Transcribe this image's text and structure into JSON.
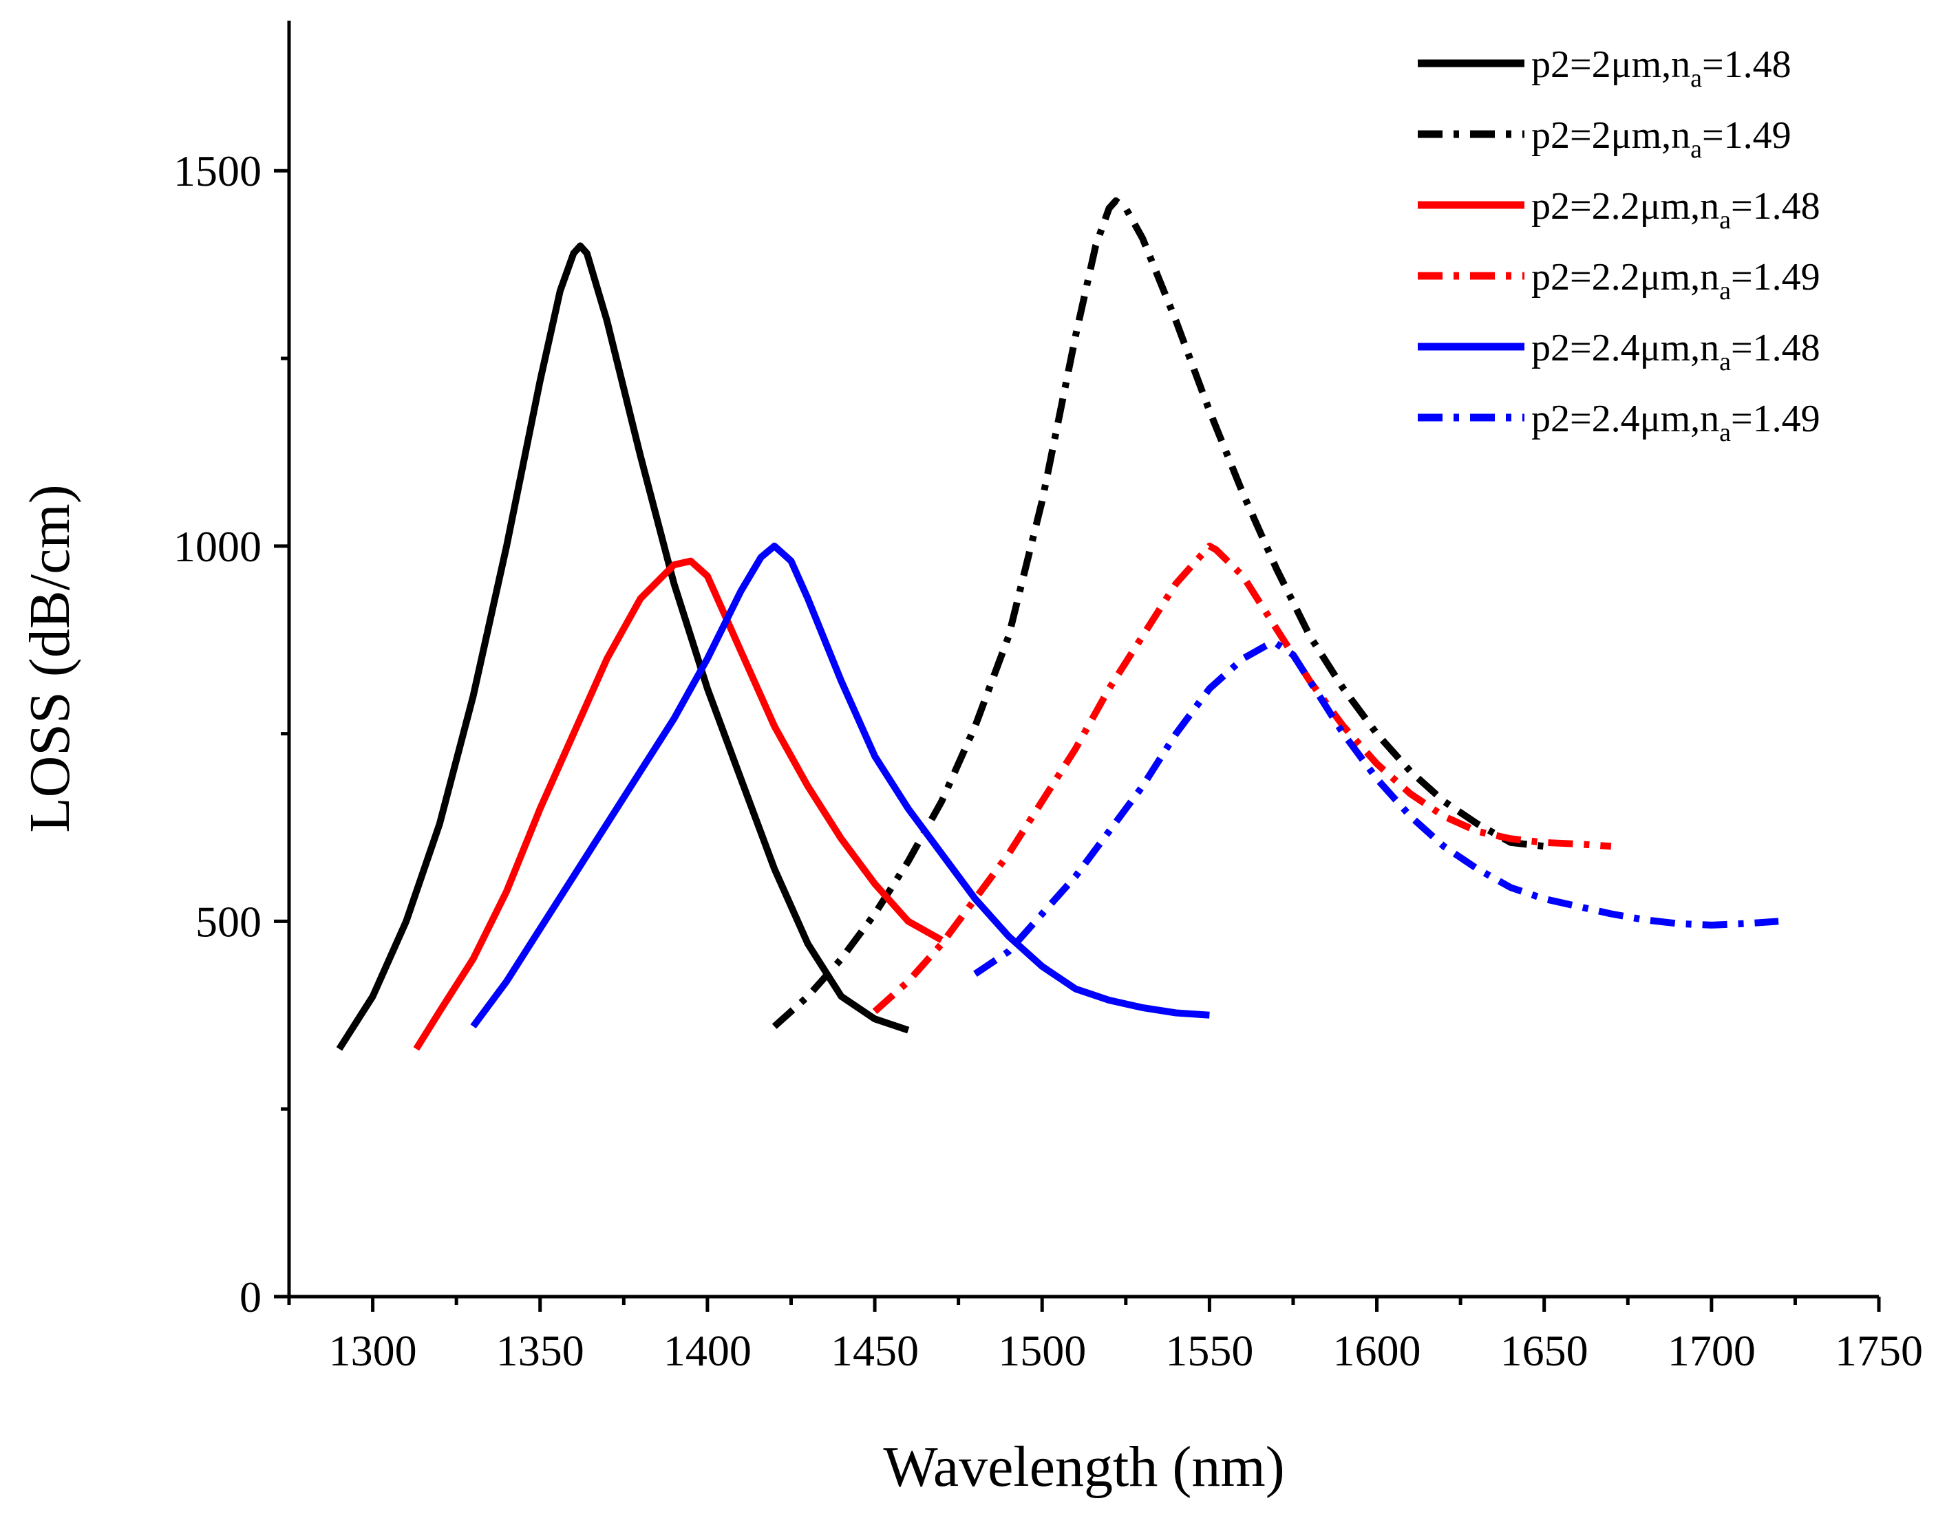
{
  "chart_data": {
    "type": "line",
    "xlabel": "Wavelength (nm)",
    "ylabel": "LOSS (dB/cm)",
    "xlim": [
      1275,
      1750
    ],
    "ylim": [
      0,
      1700
    ],
    "x_ticks": [
      1300,
      1350,
      1400,
      1450,
      1500,
      1550,
      1600,
      1650,
      1700,
      1750
    ],
    "y_ticks": [
      0,
      500,
      1000,
      1500
    ],
    "legend_position": "top-right",
    "grid": false,
    "series": [
      {
        "name": "p2=2μm,na=1.48",
        "legend_base": "p2=2μm,n",
        "legend_sub": "a",
        "legend_tail": "=1.48",
        "color": "#000000",
        "dash": "solid",
        "x": [
          1290,
          1300,
          1310,
          1320,
          1330,
          1340,
          1350,
          1356,
          1360,
          1362,
          1364,
          1370,
          1380,
          1390,
          1400,
          1410,
          1420,
          1430,
          1440,
          1450,
          1460
        ],
        "y": [
          330,
          400,
          500,
          630,
          800,
          1000,
          1220,
          1340,
          1390,
          1400,
          1390,
          1300,
          1120,
          950,
          810,
          690,
          570,
          470,
          400,
          370,
          355
        ]
      },
      {
        "name": "p2=2μm,na=1.49",
        "legend_base": "p2=2μm,n",
        "legend_sub": "a",
        "legend_tail": "=1.49",
        "color": "#000000",
        "dash": "dashdot",
        "x": [
          1420,
          1430,
          1440,
          1450,
          1460,
          1470,
          1480,
          1490,
          1500,
          1510,
          1516,
          1520,
          1522,
          1525,
          1530,
          1540,
          1550,
          1560,
          1570,
          1580,
          1590,
          1600,
          1610,
          1620,
          1630,
          1640,
          1650
        ],
        "y": [
          360,
          400,
          450,
          510,
          580,
          660,
          760,
          880,
          1060,
          1280,
          1400,
          1450,
          1460,
          1450,
          1410,
          1300,
          1180,
          1070,
          970,
          880,
          810,
          750,
          700,
          660,
          630,
          605,
          600
        ]
      },
      {
        "name": "p2=2.2μm,na=1.48",
        "legend_base": "p2=2.2μm,n",
        "legend_sub": "a",
        "legend_tail": "=1.48",
        "color": "#ff0000",
        "dash": "solid",
        "x": [
          1313,
          1320,
          1330,
          1340,
          1350,
          1360,
          1370,
          1380,
          1390,
          1395,
          1400,
          1410,
          1420,
          1430,
          1440,
          1450,
          1460,
          1470
        ],
        "y": [
          330,
          380,
          450,
          540,
          650,
          750,
          850,
          930,
          975,
          980,
          960,
          860,
          760,
          680,
          610,
          550,
          500,
          475
        ]
      },
      {
        "name": "p2=2.2μm,na=1.49",
        "legend_base": "p2=2.2μm,n",
        "legend_sub": "a",
        "legend_tail": "=1.49",
        "color": "#ff0000",
        "dash": "dashdot",
        "x": [
          1450,
          1460,
          1470,
          1480,
          1490,
          1500,
          1510,
          1520,
          1530,
          1540,
          1548,
          1550,
          1552,
          1560,
          1570,
          1580,
          1590,
          1600,
          1610,
          1620,
          1630,
          1640,
          1650,
          1660,
          1670
        ],
        "y": [
          380,
          420,
          470,
          530,
          590,
          660,
          730,
          810,
          880,
          950,
          990,
          1000,
          995,
          960,
          890,
          820,
          760,
          710,
          670,
          640,
          620,
          610,
          605,
          603,
          600
        ]
      },
      {
        "name": "p2=2.4μm,na=1.48",
        "legend_base": "p2=2.4μm,n",
        "legend_sub": "a",
        "legend_tail": "=1.48",
        "color": "#0000ff",
        "dash": "solid",
        "x": [
          1330,
          1340,
          1350,
          1360,
          1370,
          1380,
          1390,
          1400,
          1410,
          1416,
          1420,
          1425,
          1430,
          1440,
          1450,
          1460,
          1470,
          1480,
          1490,
          1500,
          1510,
          1520,
          1530,
          1540,
          1550
        ],
        "y": [
          360,
          420,
          490,
          560,
          630,
          700,
          770,
          850,
          940,
          985,
          1000,
          980,
          930,
          820,
          720,
          650,
          590,
          530,
          480,
          440,
          410,
          395,
          385,
          378,
          375
        ]
      },
      {
        "name": "p2=2.4μm,na=1.49",
        "legend_base": "p2=2.4μm,n",
        "legend_sub": "a",
        "legend_tail": "=1.49",
        "color": "#0000ff",
        "dash": "dashdot",
        "x": [
          1480,
          1490,
          1500,
          1510,
          1520,
          1530,
          1540,
          1550,
          1560,
          1568,
          1570,
          1575,
          1580,
          1590,
          1600,
          1610,
          1620,
          1630,
          1640,
          1650,
          1660,
          1670,
          1680,
          1690,
          1700,
          1710,
          1720
        ],
        "y": [
          430,
          460,
          510,
          560,
          620,
          680,
          750,
          810,
          850,
          870,
          870,
          855,
          820,
          750,
          690,
          640,
          600,
          570,
          545,
          530,
          520,
          510,
          502,
          497,
          495,
          497,
          500
        ]
      }
    ]
  }
}
